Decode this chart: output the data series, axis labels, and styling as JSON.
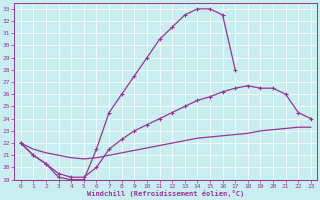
{
  "xlabel": "Windchill (Refroidissement éolien,°C)",
  "xlim": [
    -0.5,
    23.5
  ],
  "ylim": [
    19,
    33.5
  ],
  "xticks": [
    0,
    1,
    2,
    3,
    4,
    5,
    6,
    7,
    8,
    9,
    10,
    11,
    12,
    13,
    14,
    15,
    16,
    17,
    18,
    19,
    20,
    21,
    22,
    23
  ],
  "yticks": [
    19,
    20,
    21,
    22,
    23,
    24,
    25,
    26,
    27,
    28,
    29,
    30,
    31,
    32,
    33
  ],
  "background_color": "#c8eef0",
  "line_color": "#993399",
  "grid_color": "#ffffff",
  "curve1_x": [
    0,
    1,
    2,
    3,
    4,
    5,
    6,
    7,
    8,
    9,
    10,
    11,
    12,
    13,
    14,
    15,
    16,
    17
  ],
  "curve1_y": [
    22,
    21,
    20.3,
    19.2,
    19.0,
    19.0,
    21.5,
    24.5,
    26.0,
    27.5,
    29.0,
    30.5,
    31.5,
    32.5,
    33.0,
    33.0,
    32.5,
    28.0
  ],
  "curve2_x": [
    0,
    1,
    2,
    3,
    4,
    5,
    6,
    7,
    8,
    9,
    10,
    11,
    12,
    13,
    14,
    15,
    16,
    17,
    18,
    19,
    20,
    21,
    22,
    23
  ],
  "curve2_y": [
    22,
    21.0,
    20.3,
    19.5,
    19.2,
    19.2,
    20.0,
    21.5,
    22.3,
    23.0,
    23.5,
    24.0,
    24.5,
    25.0,
    25.5,
    25.8,
    26.2,
    26.5,
    26.7,
    26.5,
    26.5,
    26.0,
    24.5,
    24.0
  ],
  "curve3_x": [
    0,
    1,
    2,
    3,
    4,
    5,
    6,
    7,
    8,
    9,
    10,
    11,
    12,
    13,
    14,
    15,
    16,
    17,
    18,
    19,
    20,
    21,
    22,
    23
  ],
  "curve3_y": [
    22,
    21.5,
    21.2,
    21.0,
    20.8,
    20.7,
    20.8,
    21.0,
    21.2,
    21.4,
    21.6,
    21.8,
    22.0,
    22.2,
    22.4,
    22.5,
    22.6,
    22.7,
    22.8,
    23.0,
    23.1,
    23.2,
    23.3,
    23.3
  ]
}
